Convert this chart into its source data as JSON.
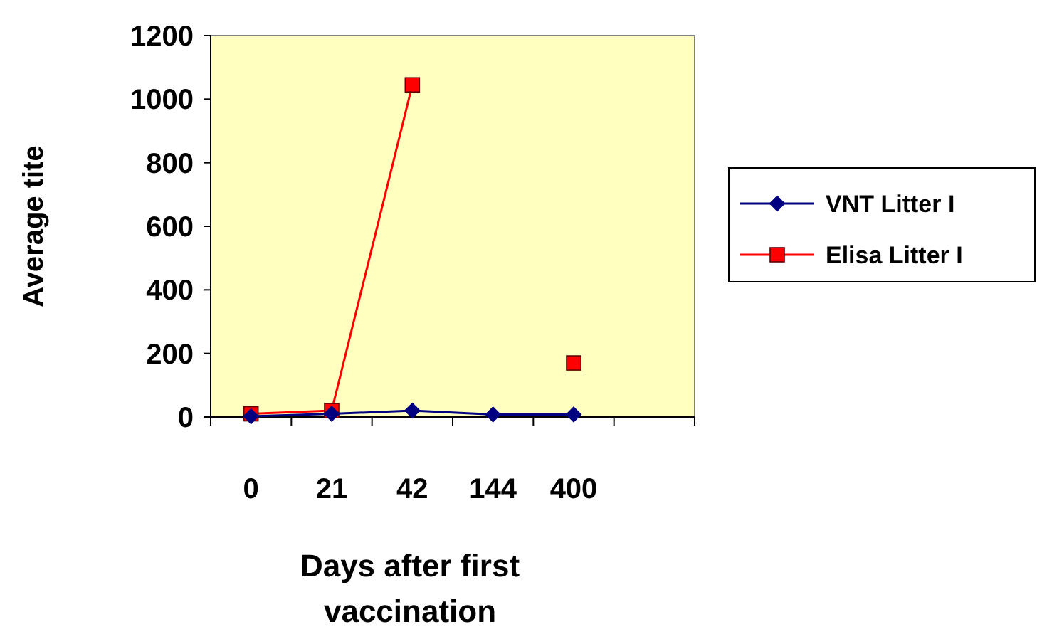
{
  "chart_data": {
    "type": "line",
    "xlabel": "Days after first vaccination",
    "ylabel": "Average tite",
    "categories": [
      "0",
      "21",
      "42",
      "144",
      "400",
      null
    ],
    "series": [
      {
        "name": "VNT Litter I",
        "color": "#000080",
        "marker": "diamond",
        "values": [
          2,
          10,
          20,
          8,
          8,
          null
        ]
      },
      {
        "name": "Elisa Litter I",
        "color": "#ff0000",
        "marker": "square",
        "values": [
          10,
          20,
          1045,
          null,
          170,
          null
        ]
      }
    ],
    "ylim": [
      0,
      1200
    ],
    "yticks": [
      0,
      200,
      400,
      600,
      800,
      1000,
      1200
    ],
    "grid": false,
    "legend": "right"
  }
}
